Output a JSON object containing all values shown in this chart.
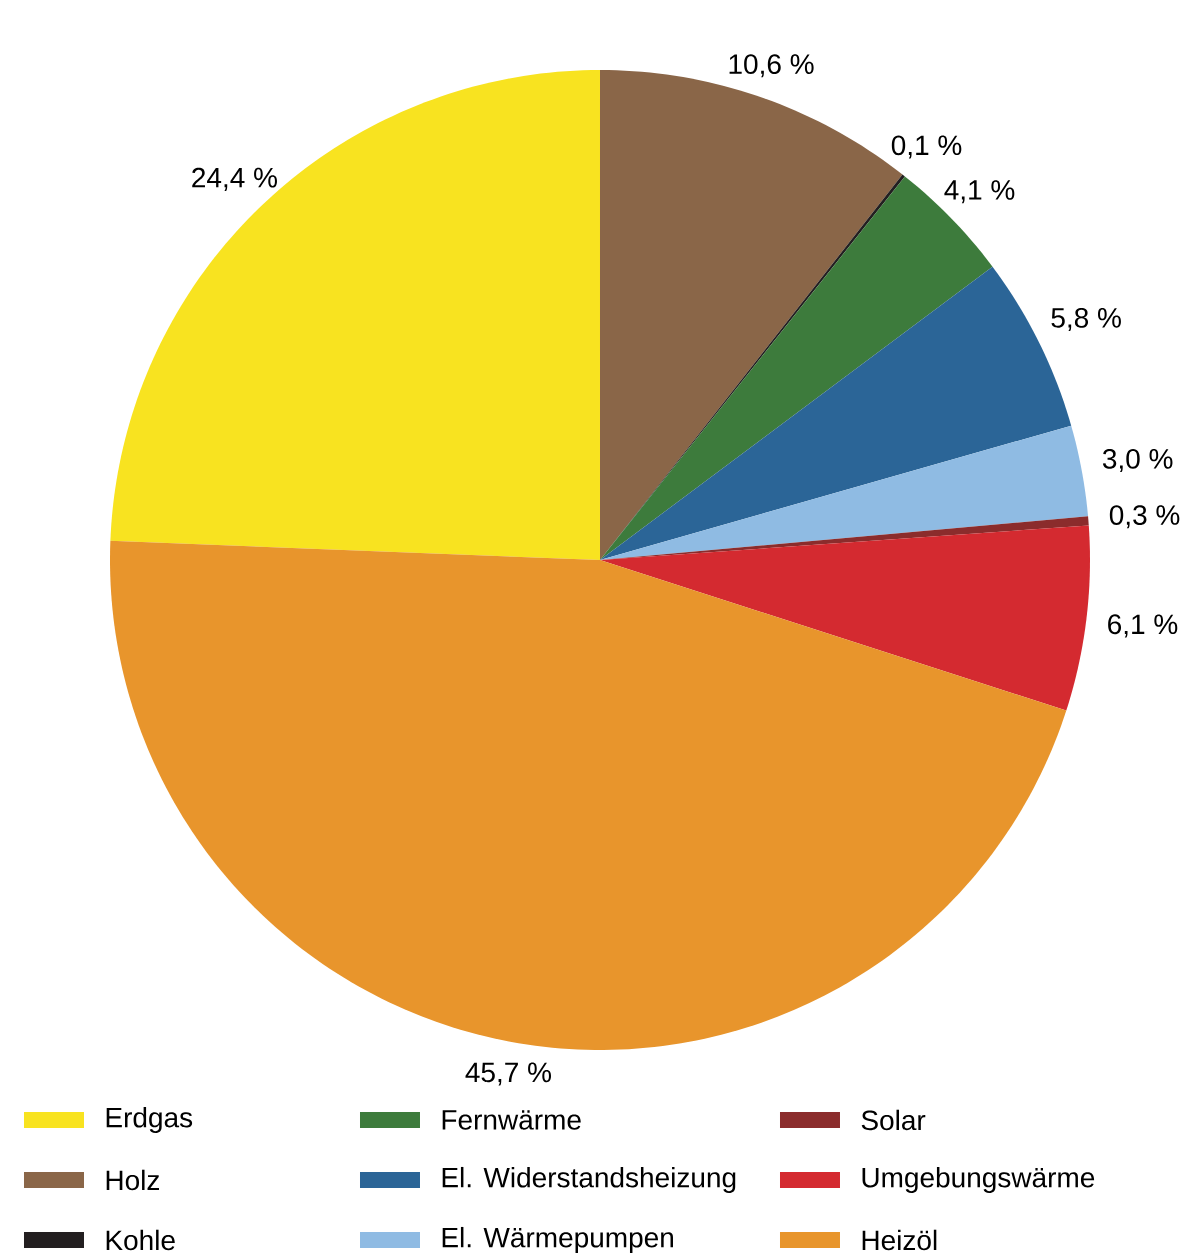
{
  "chart_data": {
    "type": "pie",
    "categories": [
      "Erdgas",
      "Holz",
      "Kohle",
      "Fernwärme",
      "El. Widerstandsheizung",
      "El. Wärmepumpen",
      "Solar",
      "Umgebungswärme",
      "Heizöl"
    ],
    "values": [
      24.4,
      10.6,
      0.1,
      4.1,
      5.8,
      3.0,
      0.3,
      6.1,
      45.7
    ],
    "value_labels": [
      "24,4 %",
      "10,6 %",
      "0,1 %",
      "4,1 %",
      "5,8 %",
      "3,0 %",
      "0,3 %",
      "6,1 %",
      "45,7 %"
    ],
    "colors": [
      "#f8e320",
      "#8a6648",
      "#231f20",
      "#3d7b3c",
      "#2b6597",
      "#8fbbe3",
      "#8b2c2c",
      "#d42a30",
      "#e8952c"
    ],
    "legend": "bottom"
  }
}
